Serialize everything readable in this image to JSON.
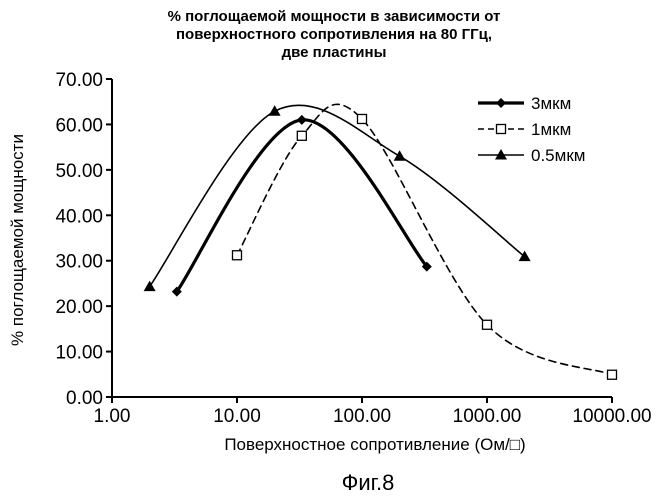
{
  "chart_data": {
    "type": "line",
    "title_lines": [
      "% поглощаемой мощности в зависимости от",
      "поверхностного сопротивления на 80 ГГц,",
      "две пластины"
    ],
    "xlabel": "Поверхностное сопротивление (Ом/□)",
    "ylabel": "% поглощаемой мощности",
    "x_scale": "log",
    "xlim": [
      1,
      10000
    ],
    "ylim": [
      0,
      70
    ],
    "x_ticks": [
      1,
      10,
      100,
      1000,
      10000
    ],
    "x_tick_labels": [
      "1.00",
      "10.00",
      "100.00",
      "1000.00",
      "10000.00"
    ],
    "y_ticks": [
      0,
      10,
      20,
      30,
      40,
      50,
      60,
      70
    ],
    "y_tick_labels": [
      "0.00",
      "10.00",
      "20.00",
      "30.00",
      "40.00",
      "50.00",
      "60.00",
      "70.00"
    ],
    "grid": false,
    "legend_position": "top-right",
    "series": [
      {
        "name": "3мкм",
        "marker": "diamond",
        "line_style": "solid-thick",
        "x": [
          3.3,
          33,
          330
        ],
        "y": [
          23.2,
          61.0,
          28.7
        ]
      },
      {
        "name": "1мкм",
        "marker": "square-open",
        "line_style": "dashed",
        "x": [
          10,
          33,
          100,
          1000,
          10000
        ],
        "y": [
          31.2,
          57.5,
          61.2,
          15.9,
          4.9
        ]
      },
      {
        "name": "0.5мкм",
        "marker": "triangle",
        "line_style": "solid",
        "x": [
          2,
          20,
          200,
          2000
        ],
        "y": [
          24.3,
          62.9,
          53.0,
          30.9
        ]
      }
    ]
  },
  "caption": "Фиг.8"
}
